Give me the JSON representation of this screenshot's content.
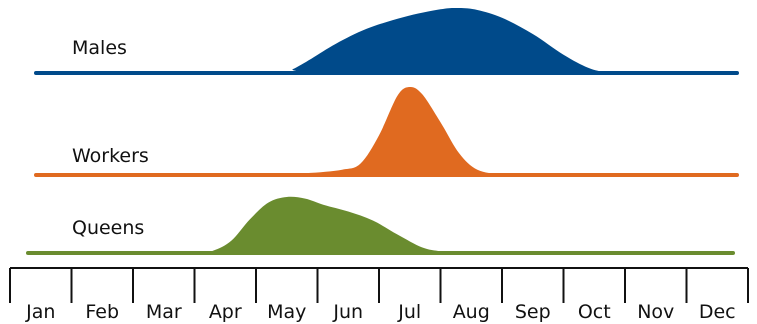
{
  "chart_data": {
    "type": "area",
    "title": "",
    "xlabel": "",
    "ylabel": "",
    "categories": [
      "Jan",
      "Feb",
      "Mar",
      "Apr",
      "May",
      "Jun",
      "Jul",
      "Aug",
      "Sep",
      "Oct",
      "Nov",
      "Dec"
    ],
    "x_range": [
      0,
      12
    ],
    "grid": false,
    "legend": "none",
    "series": [
      {
        "name": "Males",
        "color": "#004a8a",
        "values": [
          [
            0,
            0
          ],
          [
            4.4,
            0
          ],
          [
            4.6,
            0.06
          ],
          [
            4.9,
            0.22
          ],
          [
            5.3,
            0.45
          ],
          [
            5.8,
            0.68
          ],
          [
            6.4,
            0.86
          ],
          [
            7.0,
            0.98
          ],
          [
            7.3,
            1.0
          ],
          [
            7.6,
            0.97
          ],
          [
            8.0,
            0.85
          ],
          [
            8.5,
            0.6
          ],
          [
            9.0,
            0.28
          ],
          [
            9.4,
            0.08
          ],
          [
            9.7,
            0.01
          ],
          [
            10.0,
            0
          ],
          [
            12,
            0
          ]
        ]
      },
      {
        "name": "Workers",
        "color": "#e06a20",
        "values": [
          [
            0,
            0
          ],
          [
            4.0,
            0
          ],
          [
            4.8,
            0.02
          ],
          [
            5.4,
            0.06
          ],
          [
            5.7,
            0.13
          ],
          [
            6.0,
            0.45
          ],
          [
            6.3,
            0.9
          ],
          [
            6.5,
            1.0
          ],
          [
            6.7,
            0.92
          ],
          [
            7.0,
            0.6
          ],
          [
            7.3,
            0.25
          ],
          [
            7.6,
            0.06
          ],
          [
            8.0,
            0.01
          ],
          [
            8.5,
            0
          ],
          [
            12,
            0
          ]
        ]
      },
      {
        "name": "Queens",
        "color": "#6a8c2f",
        "values": [
          [
            0,
            0
          ],
          [
            3.0,
            0
          ],
          [
            3.3,
            0.04
          ],
          [
            3.6,
            0.22
          ],
          [
            3.9,
            0.6
          ],
          [
            4.2,
            0.9
          ],
          [
            4.5,
            1.0
          ],
          [
            4.8,
            0.97
          ],
          [
            5.1,
            0.86
          ],
          [
            5.5,
            0.74
          ],
          [
            5.9,
            0.58
          ],
          [
            6.3,
            0.33
          ],
          [
            6.7,
            0.1
          ],
          [
            7.0,
            0.03
          ],
          [
            7.3,
            0
          ],
          [
            12,
            0
          ]
        ]
      }
    ]
  }
}
